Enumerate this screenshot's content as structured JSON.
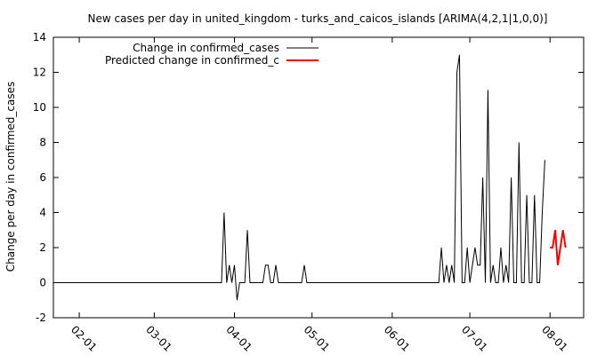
{
  "chart_data": {
    "type": "line",
    "title": "New cases per day in united_kingdom - turks_and_caicos_islands [ARIMA(4,2,1|1,0,0)]",
    "xlabel": "",
    "ylabel": "Change per day in confirmed_cases",
    "xlim": [
      "2020-01-22",
      "2020-08-14"
    ],
    "ylim": [
      -2,
      14
    ],
    "x_ticks": [
      "2020-02-01",
      "2020-03-01",
      "2020-04-01",
      "2020-05-01",
      "2020-06-01",
      "2020-07-01",
      "2020-08-01"
    ],
    "x_tick_labels": [
      "02-01",
      "03-01",
      "04-01",
      "05-01",
      "06-01",
      "07-01",
      "08-01"
    ],
    "y_ticks": [
      -2,
      0,
      2,
      4,
      6,
      8,
      10,
      12,
      14
    ],
    "y_tick_labels": [
      "-2",
      "0",
      "2",
      "4",
      "6",
      "8",
      "10",
      "12",
      "14"
    ],
    "grid": false,
    "legend_position": "top-left",
    "series": [
      {
        "name": "Change in confirmed_cases",
        "color": "#000000",
        "points": [
          [
            "2020-01-22",
            0
          ],
          [
            "2020-03-27",
            0
          ],
          [
            "2020-03-28",
            4
          ],
          [
            "2020-03-29",
            0
          ],
          [
            "2020-03-30",
            1
          ],
          [
            "2020-03-31",
            0
          ],
          [
            "2020-04-01",
            1
          ],
          [
            "2020-04-02",
            -1
          ],
          [
            "2020-04-03",
            0
          ],
          [
            "2020-04-04",
            0
          ],
          [
            "2020-04-05",
            0
          ],
          [
            "2020-04-06",
            3
          ],
          [
            "2020-04-07",
            0
          ],
          [
            "2020-04-12",
            0
          ],
          [
            "2020-04-13",
            1
          ],
          [
            "2020-04-14",
            1
          ],
          [
            "2020-04-15",
            0
          ],
          [
            "2020-04-16",
            0
          ],
          [
            "2020-04-17",
            1
          ],
          [
            "2020-04-18",
            0
          ],
          [
            "2020-04-27",
            0
          ],
          [
            "2020-04-28",
            1
          ],
          [
            "2020-04-29",
            0
          ],
          [
            "2020-06-19",
            0
          ],
          [
            "2020-06-20",
            2
          ],
          [
            "2020-06-21",
            0
          ],
          [
            "2020-06-22",
            1
          ],
          [
            "2020-06-23",
            0
          ],
          [
            "2020-06-24",
            1
          ],
          [
            "2020-06-25",
            0
          ],
          [
            "2020-06-26",
            12
          ],
          [
            "2020-06-27",
            13
          ],
          [
            "2020-06-28",
            0
          ],
          [
            "2020-06-29",
            0
          ],
          [
            "2020-06-30",
            2
          ],
          [
            "2020-07-01",
            0
          ],
          [
            "2020-07-02",
            1
          ],
          [
            "2020-07-03",
            2
          ],
          [
            "2020-07-04",
            1
          ],
          [
            "2020-07-05",
            1
          ],
          [
            "2020-07-06",
            6
          ],
          [
            "2020-07-07",
            0
          ],
          [
            "2020-07-08",
            11
          ],
          [
            "2020-07-09",
            0
          ],
          [
            "2020-07-10",
            1
          ],
          [
            "2020-07-11",
            0
          ],
          [
            "2020-07-12",
            0
          ],
          [
            "2020-07-13",
            2
          ],
          [
            "2020-07-14",
            0
          ],
          [
            "2020-07-15",
            1
          ],
          [
            "2020-07-16",
            0
          ],
          [
            "2020-07-17",
            6
          ],
          [
            "2020-07-18",
            0
          ],
          [
            "2020-07-19",
            0
          ],
          [
            "2020-07-20",
            8
          ],
          [
            "2020-07-21",
            0
          ],
          [
            "2020-07-22",
            0
          ],
          [
            "2020-07-23",
            5
          ],
          [
            "2020-07-24",
            0
          ],
          [
            "2020-07-25",
            0
          ],
          [
            "2020-07-26",
            5
          ],
          [
            "2020-07-27",
            0
          ],
          [
            "2020-07-28",
            0
          ],
          [
            "2020-07-29",
            4
          ],
          [
            "2020-07-30",
            7
          ]
        ]
      },
      {
        "name": "Predicted change in confirmed_c",
        "color": "#ff0000",
        "points": [
          [
            "2020-08-01",
            2
          ],
          [
            "2020-08-02",
            2
          ],
          [
            "2020-08-03",
            3
          ],
          [
            "2020-08-04",
            1
          ],
          [
            "2020-08-05",
            2
          ],
          [
            "2020-08-06",
            3
          ],
          [
            "2020-08-07",
            2
          ]
        ]
      }
    ]
  }
}
